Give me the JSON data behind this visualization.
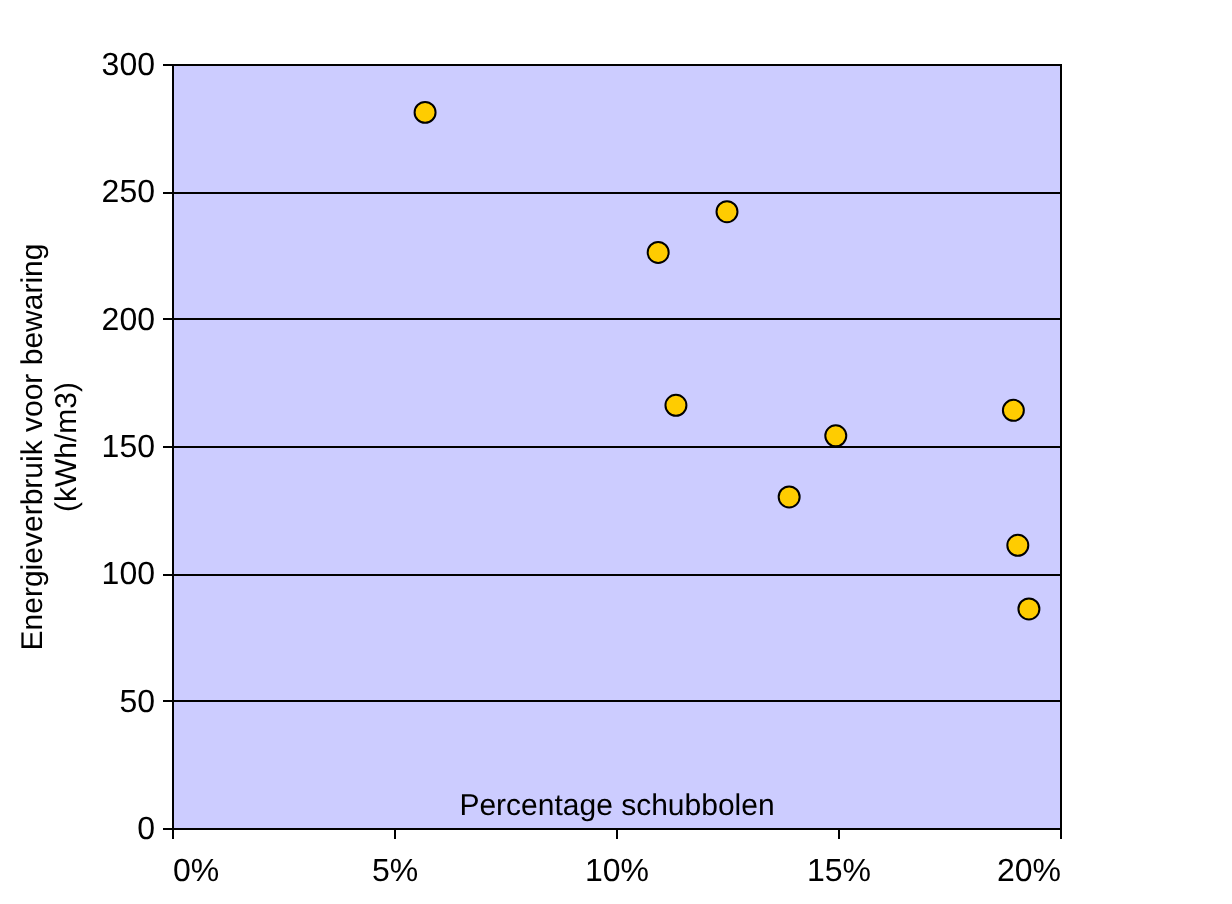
{
  "chart_data": {
    "type": "scatter",
    "xlabel": "Percentage schubbolen",
    "ylabel": "Energieverbruik voor bewaring\n(kWh/m3)",
    "x": [
      5.7,
      10.95,
      12.5,
      11.35,
      13.9,
      14.95,
      18.95,
      19.05,
      19.3
    ],
    "series": [
      {
        "color": "#ffcc00",
        "values": [
          281,
          226,
          242,
          166,
          130,
          154,
          164,
          111,
          86
        ]
      }
    ],
    "xlim": [
      0,
      20
    ],
    "xticks": [
      {
        "value": 0,
        "label": "0%"
      },
      {
        "value": 5,
        "label": "5%"
      },
      {
        "value": 10,
        "label": "10%"
      },
      {
        "value": 15,
        "label": "15%"
      },
      {
        "value": 20,
        "label": "20%"
      }
    ],
    "ylim": [
      0,
      300
    ],
    "yticks": [
      0,
      50,
      100,
      150,
      200,
      250,
      300
    ],
    "grid": "y",
    "marker": "circle"
  }
}
